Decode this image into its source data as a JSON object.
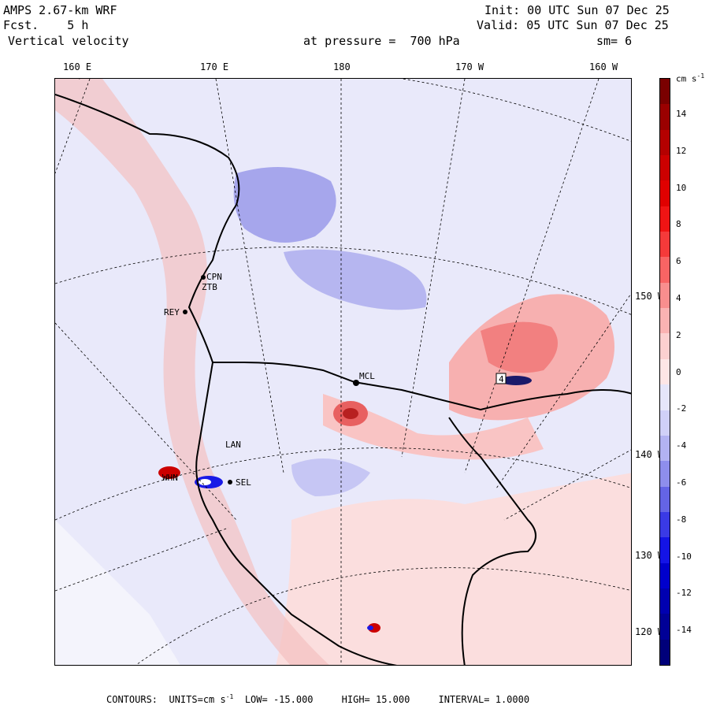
{
  "header": {
    "model": "AMPS 2.67-km WRF",
    "fcst_label": "Fcst.",
    "fcst_value": "5 h",
    "field": "Vertical velocity",
    "pressure_text": "at pressure =  700 hPa",
    "init": "Init: 00 UTC Sun 07 Dec 25",
    "valid": "Valid: 05 UTC Sun 07 Dec 25",
    "smoothing": "sm= 6"
  },
  "longitude_ticks": [
    "160 E",
    "170 E",
    "180",
    "170 W",
    "160 W"
  ],
  "latitude_ticks": [
    "150 W",
    "140 W",
    "130 W",
    "120 W"
  ],
  "colorbar": {
    "units": "cm s",
    "units_exp": "-1",
    "labels": [
      "14",
      "12",
      "10",
      "8",
      "6",
      "4",
      "2",
      "0",
      "-2",
      "-4",
      "-6",
      "-8",
      "-10",
      "-12",
      "-14"
    ],
    "colors": [
      "#7a0000",
      "#9a0000",
      "#b40000",
      "#cc0000",
      "#e00000",
      "#f01414",
      "#f53a3a",
      "#f86464",
      "#f98e8e",
      "#fab2b2",
      "#fcd0d0",
      "#fee6e6",
      "#e6e6fa",
      "#d0d0f8",
      "#b2b2f2",
      "#8e8eec",
      "#6464e6",
      "#3a3ae6",
      "#1414e6",
      "#0000cc",
      "#0000b0",
      "#000096",
      "#00007a"
    ]
  },
  "stations": [
    "CPN",
    "ZTB",
    "REY",
    "MCL",
    "LAN",
    "SEL",
    "WHN",
    "4"
  ],
  "footer": {
    "contours_label": "CONTOURS:",
    "units": "UNITS=cm s",
    "units_exp": "-1",
    "low": "LOW= -15.000",
    "high": "HIGH= 15.000",
    "interval": "INTERVAL= 1.0000"
  }
}
